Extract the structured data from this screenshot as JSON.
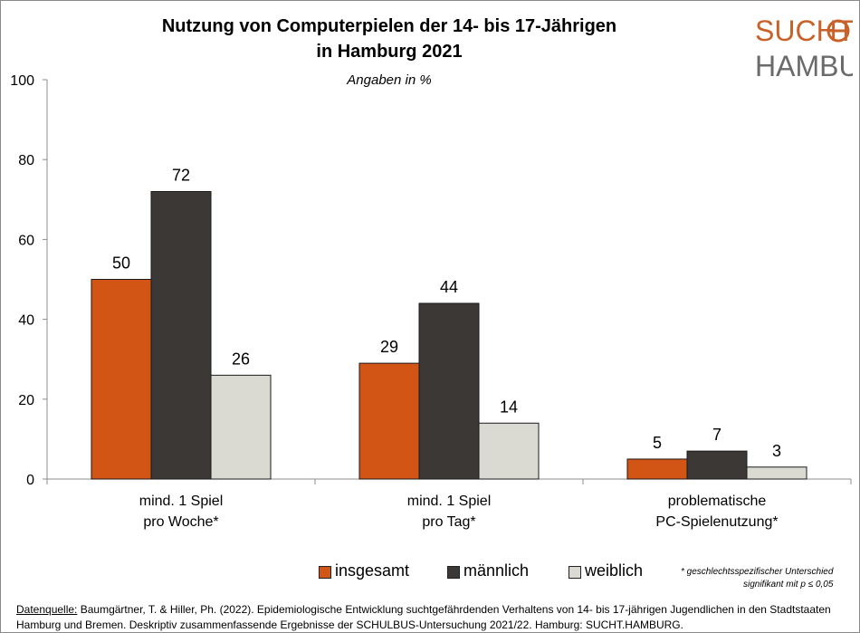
{
  "logo": {
    "line1": "SUCHT",
    "line2": "HAMBURG",
    "accent": "#c8622a"
  },
  "colors": {
    "insgesamt": "#d35516",
    "maennlich": "#3b3836",
    "weiblich": "#dadad2"
  },
  "legend": [
    {
      "label": "insgesamt",
      "color": "#d35516"
    },
    {
      "label": "männlich",
      "color": "#3b3836"
    },
    {
      "label": "weiblich",
      "color": "#dadad2"
    }
  ],
  "note": {
    "line1": "* geschlechtsspezifischer Unterschied",
    "line2": "signifikant mit p ≤ 0,05"
  },
  "source": {
    "prefix": "Datenquelle:",
    "text": " Baumgärtner, T. & Hiller, Ph. (2022). Epidemiologische Entwicklung suchtgefährdenden Verhaltens von 14- bis 17-jährigen Jugendlichen in den Stadtstaaten Hamburg und Bremen. Deskriptiv zusammenfassende Ergebnisse der SCHULBUS-Untersuchung 2021/22. Hamburg: SUCHT.HAMBURG."
  },
  "chart_data": {
    "type": "bar",
    "title_line1": "Nutzung von Computerpielen der 14- bis 17-Jährigen",
    "title_line2": "in Hamburg 2021",
    "subtitle": "Angaben in %",
    "categories": [
      [
        "mind. 1 Spiel",
        "pro Woche*"
      ],
      [
        "mind. 1 Spiel",
        "pro Tag*"
      ],
      [
        "problematische",
        "PC-Spielenutzung*"
      ]
    ],
    "series": [
      {
        "name": "insgesamt",
        "values": [
          50,
          29,
          5
        ]
      },
      {
        "name": "männlich",
        "values": [
          72,
          44,
          7
        ]
      },
      {
        "name": "weiblich",
        "values": [
          26,
          14,
          3
        ]
      }
    ],
    "ylim": [
      0,
      100
    ],
    "yticks": [
      0,
      20,
      40,
      60,
      80,
      100
    ],
    "grid": false,
    "legend_position": "bottom"
  }
}
